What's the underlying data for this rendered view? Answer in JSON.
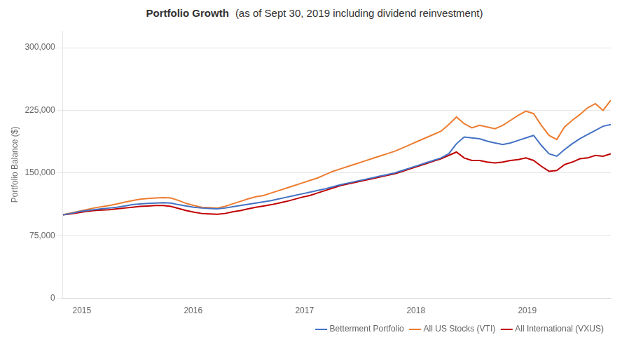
{
  "chart_data": {
    "type": "line",
    "title": "Portfolio Growth",
    "subtitle": "(as of Sept 30, 2019 including dividend reinvestment)",
    "y_label": "Portfolio Balance ($)",
    "x": [
      2014.83,
      2014.899296,
      2014.968592,
      2015.037887,
      2015.107183,
      2015.176479,
      2015.245775,
      2015.31507,
      2015.384366,
      2015.453662,
      2015.522958,
      2015.592254,
      2015.661549,
      2015.730845,
      2015.800141,
      2015.869437,
      2015.938732,
      2016.008028,
      2016.077324,
      2016.14662,
      2016.215915,
      2016.285211,
      2016.354507,
      2016.423803,
      2016.493099,
      2016.562394,
      2016.63169,
      2016.700986,
      2016.770282,
      2016.839577,
      2016.908873,
      2016.978169,
      2017.047465,
      2017.116761,
      2017.186056,
      2017.255352,
      2017.324648,
      2017.393944,
      2017.463239,
      2017.532535,
      2017.601831,
      2017.671127,
      2017.740423,
      2017.809718,
      2017.879014,
      2017.94831,
      2018.017606,
      2018.086901,
      2018.156197,
      2018.225493,
      2018.294789,
      2018.364085,
      2018.43338,
      2018.502676,
      2018.571972,
      2018.641268,
      2018.710563,
      2018.779859,
      2018.849155,
      2018.918451,
      2018.987746,
      2019.057042,
      2019.126338,
      2019.195634,
      2019.26493,
      2019.334225,
      2019.403521,
      2019.472817,
      2019.542113,
      2019.611408,
      2019.680704,
      2019.75
    ],
    "series": [
      {
        "name": "Betterment Portfolio",
        "color": "#4472c4",
        "values": [
          100000,
          101500,
          103500,
          105000,
          106000,
          107000,
          108000,
          109000,
          110500,
          112000,
          113000,
          113500,
          114000,
          114500,
          114000,
          112000,
          110500,
          109000,
          108000,
          107500,
          107000,
          108000,
          109500,
          111000,
          112500,
          114000,
          115500,
          117000,
          119000,
          121000,
          123000,
          125000,
          127000,
          129000,
          131000,
          133500,
          136000,
          138000,
          140000,
          142000,
          144000,
          146000,
          148000,
          150000,
          153000,
          156000,
          159000,
          162000,
          165000,
          168000,
          173000,
          185000,
          193000,
          192000,
          191000,
          188000,
          186000,
          184000,
          186000,
          189000,
          192000,
          195000,
          183000,
          173000,
          170000,
          178000,
          185000,
          191000,
          196000,
          201000,
          206000,
          208000
        ]
      },
      {
        "name": "All US Stocks (VTI)",
        "color": "#ed7d31",
        "values": [
          100000,
          102000,
          104000,
          106000,
          108000,
          109500,
          111000,
          113000,
          115000,
          117000,
          118500,
          119500,
          120000,
          120500,
          120000,
          117000,
          113500,
          111000,
          109000,
          108500,
          108000,
          110000,
          113000,
          116000,
          119000,
          121500,
          123000,
          126000,
          129000,
          132000,
          135000,
          138000,
          141000,
          144000,
          148000,
          152000,
          155000,
          158000,
          161000,
          164000,
          167000,
          170000,
          173000,
          176000,
          180000,
          184000,
          188000,
          192000,
          196000,
          200000,
          208000,
          217000,
          209000,
          204000,
          207000,
          205000,
          203000,
          207000,
          213000,
          219000,
          224000,
          221000,
          207000,
          195000,
          190000,
          205000,
          213000,
          220000,
          228000,
          233000,
          225000,
          237000
        ]
      },
      {
        "name": "All International (VXUS)",
        "color": "#c00000",
        "values": [
          100000,
          101000,
          102500,
          104000,
          105000,
          105500,
          106000,
          107000,
          108000,
          109000,
          110000,
          110500,
          111000,
          111000,
          110000,
          107500,
          105000,
          103000,
          101500,
          101000,
          100500,
          101500,
          103500,
          105000,
          107000,
          109000,
          110500,
          112000,
          114000,
          116000,
          118500,
          121000,
          123000,
          126000,
          129000,
          132000,
          135000,
          137000,
          139000,
          141000,
          143000,
          145000,
          147000,
          149000,
          152000,
          155000,
          158000,
          161000,
          164000,
          167000,
          171000,
          175000,
          168000,
          165000,
          165000,
          163000,
          162000,
          163000,
          165000,
          166000,
          168000,
          165000,
          158000,
          152000,
          153000,
          160000,
          163000,
          167000,
          168000,
          171000,
          170000,
          173000
        ]
      }
    ],
    "xlim": [
      2014.83,
      2019.75
    ],
    "xticks": [
      2015,
      2016,
      2017,
      2018,
      2019
    ],
    "ylim": [
      0,
      320000
    ],
    "yticks": [
      0,
      {
        "value": 75000,
        "label": "75,000"
      },
      {
        "value": 150000,
        "label": "150,000"
      },
      {
        "value": 225000,
        "label": "225,000"
      },
      {
        "value": 300000,
        "label": "300,000"
      }
    ],
    "grid": "y",
    "legend": "lower right"
  }
}
